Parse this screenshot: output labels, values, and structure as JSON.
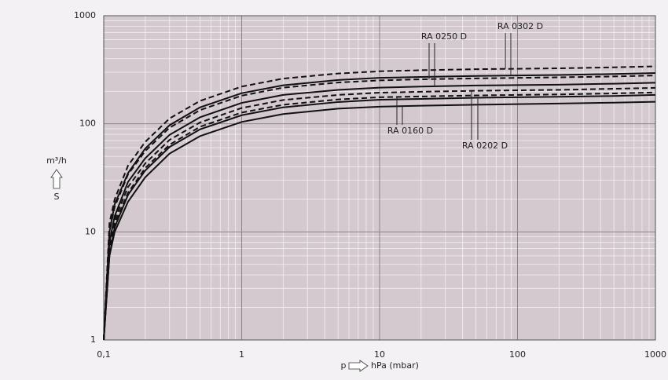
{
  "chart_data": {
    "type": "line",
    "x_unit_label": "hPa (mbar)",
    "x_symbol": "p",
    "y_unit_label": "m³/h",
    "y_symbol": "S",
    "x": [
      0.1,
      0.11,
      0.12,
      0.15,
      0.2,
      0.3,
      0.5,
      1,
      2,
      5,
      10,
      20,
      50,
      100,
      200,
      500,
      1000
    ],
    "series": [
      {
        "name": "RA 0302 D",
        "color": "#111111",
        "dashed_values": [
          1,
          12,
          20,
          41,
          68,
          112,
          163,
          221,
          262,
          292,
          306,
          313,
          320,
          323,
          326,
          333,
          340
        ],
        "values": [
          1,
          10,
          18,
          35,
          59,
          97,
          142,
          192,
          227,
          254,
          266,
          271,
          277,
          280,
          283,
          289,
          295
        ]
      },
      {
        "name": "RA 0250 D",
        "color": "#111111",
        "dashed_values": [
          1,
          10,
          17,
          34,
          56,
          92,
          134,
          182,
          216,
          241,
          252,
          258,
          263,
          266,
          269,
          274,
          280
        ],
        "values": [
          1,
          8,
          14,
          29,
          48,
          79,
          115,
          156,
          185,
          206,
          216,
          221,
          226,
          228,
          230,
          235,
          240
        ]
      },
      {
        "name": "RA 0202 D",
        "color": "#111111",
        "dashed_values": [
          1,
          8,
          13,
          26,
          43,
          71,
          103,
          140,
          166,
          185,
          194,
          198,
          202,
          204,
          206,
          211,
          215
        ],
        "values": [
          1,
          6,
          11,
          22,
          37,
          61,
          89,
          120,
          142,
          159,
          167,
          170,
          174,
          176,
          178,
          181,
          185
        ]
      },
      {
        "name": "RA 0160 D",
        "color": "#111111",
        "dashed_values": [
          1,
          7,
          12,
          23,
          39,
          64,
          94,
          127,
          150,
          168,
          176,
          179,
          183,
          185,
          187,
          191,
          195
        ],
        "values": [
          1,
          6,
          10,
          19,
          32,
          53,
          77,
          104,
          123,
          138,
          144,
          147,
          150,
          152,
          154,
          157,
          160
        ]
      }
    ],
    "xlim": [
      0.1,
      1000
    ],
    "ylim": [
      1,
      1000
    ],
    "xticks": [
      {
        "value": 0.1,
        "label": "0,1"
      },
      1,
      10,
      100,
      1000
    ],
    "yticks": [
      1,
      10,
      100,
      1000
    ],
    "xscale": "log",
    "yscale": "log",
    "grid": true,
    "minor_grid": true,
    "plot_background": "#d4c9cf"
  }
}
